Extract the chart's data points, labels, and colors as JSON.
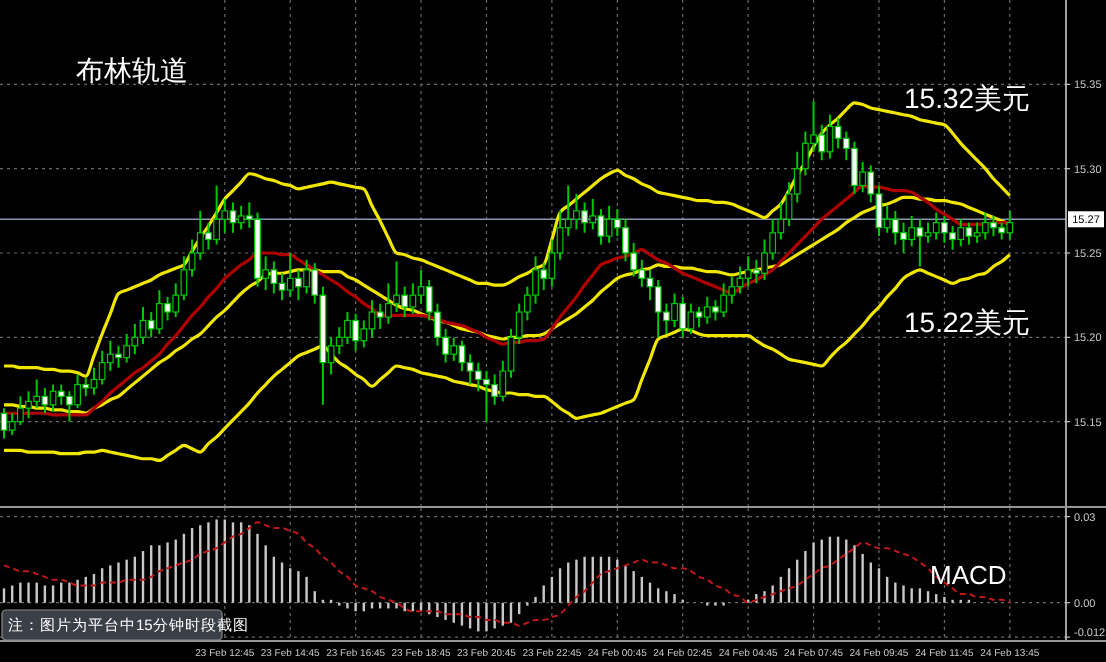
{
  "chart_data": [
    {
      "type": "candlestick",
      "title": "布林轨道",
      "color": "#00c800",
      "categories": [
        null,
        null,
        null,
        null,
        null,
        null,
        null,
        null,
        null,
        null,
        null,
        null,
        null,
        null,
        null,
        null,
        null,
        null,
        null,
        null,
        null,
        null,
        null,
        null,
        null,
        null,
        null,
        null,
        null,
        null,
        null,
        null,
        null,
        null,
        null,
        null,
        null,
        null,
        null,
        null,
        null,
        null,
        null,
        null,
        null,
        null,
        null,
        null,
        null,
        null,
        null,
        null,
        null,
        null,
        null,
        null,
        null,
        null,
        null,
        null,
        null,
        null,
        null,
        null,
        null,
        null,
        null,
        null,
        null,
        null,
        null,
        null,
        null,
        null,
        null,
        null,
        null,
        null,
        null,
        null,
        null,
        null,
        null,
        null,
        null,
        null,
        null,
        null,
        null,
        null,
        null,
        null,
        null,
        null,
        null,
        null,
        null,
        null,
        null,
        null,
        null,
        null,
        null,
        null,
        null,
        null,
        null,
        null,
        null,
        null,
        null,
        null,
        null,
        null,
        null,
        null,
        null,
        null,
        null,
        null,
        null,
        null,
        null,
        null
      ],
      "ohlc": [
        [
          15.155,
          15.158,
          15.14,
          15.145
        ],
        [
          15.145,
          15.155,
          15.142,
          15.15
        ],
        [
          15.15,
          15.165,
          15.148,
          15.158
        ],
        [
          15.158,
          15.168,
          15.152,
          15.162
        ],
        [
          15.162,
          15.175,
          15.158,
          15.165
        ],
        [
          15.165,
          15.17,
          15.155,
          15.16
        ],
        [
          15.16,
          15.172,
          15.156,
          15.168
        ],
        [
          15.168,
          15.172,
          15.16,
          15.165
        ],
        [
          15.165,
          15.168,
          15.15,
          15.16
        ],
        [
          15.16,
          15.178,
          15.158,
          15.172
        ],
        [
          15.172,
          15.176,
          15.165,
          15.17
        ],
        [
          15.17,
          15.182,
          15.166,
          15.175
        ],
        [
          15.175,
          15.192,
          15.172,
          15.185
        ],
        [
          15.185,
          15.198,
          15.18,
          15.19
        ],
        [
          15.19,
          15.195,
          15.182,
          15.188
        ],
        [
          15.188,
          15.202,
          15.185,
          15.195
        ],
        [
          15.195,
          15.208,
          15.19,
          15.2
        ],
        [
          15.2,
          15.218,
          15.196,
          15.21
        ],
        [
          15.21,
          15.215,
          15.2,
          15.205
        ],
        [
          15.205,
          15.228,
          15.202,
          15.22
        ],
        [
          15.22,
          15.224,
          15.21,
          15.215
        ],
        [
          15.215,
          15.232,
          15.212,
          15.225
        ],
        [
          15.225,
          15.248,
          15.222,
          15.24
        ],
        [
          15.24,
          15.258,
          15.236,
          15.25
        ],
        [
          15.25,
          15.275,
          15.246,
          15.262
        ],
        [
          15.262,
          15.268,
          15.252,
          15.258
        ],
        [
          15.258,
          15.29,
          15.255,
          15.27
        ],
        [
          15.27,
          15.282,
          15.262,
          15.275
        ],
        [
          15.275,
          15.28,
          15.262,
          15.268
        ],
        [
          15.268,
          15.278,
          15.264,
          15.272
        ],
        [
          15.272,
          15.28,
          15.265,
          15.27
        ],
        [
          15.27,
          15.274,
          15.23,
          15.235
        ],
        [
          15.235,
          15.248,
          15.228,
          15.24
        ],
        [
          15.24,
          15.245,
          15.226,
          15.232
        ],
        [
          15.232,
          15.238,
          15.222,
          15.228
        ],
        [
          15.228,
          15.25,
          15.224,
          15.235
        ],
        [
          15.235,
          15.24,
          15.222,
          15.23
        ],
        [
          15.23,
          15.246,
          15.226,
          15.24
        ],
        [
          15.24,
          15.244,
          15.22,
          15.225
        ],
        [
          15.225,
          15.23,
          15.16,
          15.185
        ],
        [
          15.185,
          15.2,
          15.178,
          15.195
        ],
        [
          15.195,
          15.206,
          15.19,
          15.2
        ],
        [
          15.2,
          15.215,
          15.196,
          15.21
        ],
        [
          15.21,
          15.214,
          15.192,
          15.198
        ],
        [
          15.198,
          15.21,
          15.194,
          15.205
        ],
        [
          15.205,
          15.222,
          15.2,
          15.215
        ],
        [
          15.215,
          15.22,
          15.205,
          15.212
        ],
        [
          15.212,
          15.232,
          15.208,
          15.22
        ],
        [
          15.22,
          15.245,
          15.215,
          15.225
        ],
        [
          15.225,
          15.23,
          15.212,
          15.218
        ],
        [
          15.218,
          15.232,
          15.214,
          15.225
        ],
        [
          15.225,
          15.24,
          15.22,
          15.23
        ],
        [
          15.23,
          15.234,
          15.21,
          15.215
        ],
        [
          15.215,
          15.22,
          15.195,
          15.2
        ],
        [
          15.2,
          15.205,
          15.185,
          15.19
        ],
        [
          15.19,
          15.2,
          15.186,
          15.195
        ],
        [
          15.195,
          15.198,
          15.18,
          15.185
        ],
        [
          15.185,
          15.19,
          15.172,
          15.18
        ],
        [
          15.18,
          15.185,
          15.168,
          15.175
        ],
        [
          15.175,
          15.18,
          15.15,
          15.172
        ],
        [
          15.172,
          15.178,
          15.16,
          15.165
        ],
        [
          15.165,
          15.186,
          15.162,
          15.18
        ],
        [
          15.18,
          15.205,
          15.176,
          15.2
        ],
        [
          15.2,
          15.22,
          15.196,
          15.215
        ],
        [
          15.215,
          15.23,
          15.21,
          15.225
        ],
        [
          15.225,
          15.248,
          15.22,
          15.24
        ],
        [
          15.24,
          15.244,
          15.228,
          15.235
        ],
        [
          15.235,
          15.258,
          15.23,
          15.25
        ],
        [
          15.25,
          15.275,
          15.246,
          15.265
        ],
        [
          15.265,
          15.29,
          15.26,
          15.27
        ],
        [
          15.27,
          15.285,
          15.264,
          15.275
        ],
        [
          15.275,
          15.28,
          15.262,
          15.268
        ],
        [
          15.268,
          15.282,
          15.264,
          15.272
        ],
        [
          15.272,
          15.276,
          15.255,
          15.26
        ],
        [
          15.26,
          15.278,
          15.256,
          15.27
        ],
        [
          15.27,
          15.276,
          15.26,
          15.265
        ],
        [
          15.265,
          15.27,
          15.245,
          15.25
        ],
        [
          15.25,
          15.256,
          15.236,
          15.24
        ],
        [
          15.24,
          15.246,
          15.23,
          15.235
        ],
        [
          15.235,
          15.24,
          15.222,
          15.23
        ],
        [
          15.23,
          15.234,
          15.2,
          15.215
        ],
        [
          15.215,
          15.22,
          15.202,
          15.21
        ],
        [
          15.21,
          15.226,
          15.206,
          15.22
        ],
        [
          15.22,
          15.224,
          15.2,
          15.205
        ],
        [
          15.205,
          15.22,
          15.202,
          15.215
        ],
        [
          15.215,
          15.218,
          15.206,
          15.212
        ],
        [
          15.212,
          15.224,
          15.208,
          15.218
        ],
        [
          15.218,
          15.222,
          15.21,
          15.215
        ],
        [
          15.215,
          15.232,
          15.212,
          15.225
        ],
        [
          15.225,
          15.236,
          15.22,
          15.23
        ],
        [
          15.23,
          15.242,
          15.226,
          15.235
        ],
        [
          15.235,
          15.248,
          15.23,
          15.24
        ],
        [
          15.24,
          15.246,
          15.232,
          15.238
        ],
        [
          15.238,
          15.258,
          15.234,
          15.25
        ],
        [
          15.25,
          15.27,
          15.246,
          15.262
        ],
        [
          15.262,
          15.28,
          15.258,
          15.27
        ],
        [
          15.27,
          15.292,
          15.266,
          15.285
        ],
        [
          15.285,
          15.31,
          15.28,
          15.3
        ],
        [
          15.3,
          15.322,
          15.296,
          15.315
        ],
        [
          15.315,
          15.34,
          15.31,
          15.32
        ],
        [
          15.32,
          15.326,
          15.305,
          15.31
        ],
        [
          15.31,
          15.332,
          15.306,
          15.325
        ],
        [
          15.325,
          15.33,
          15.312,
          15.318
        ],
        [
          15.318,
          15.322,
          15.305,
          15.312
        ],
        [
          15.312,
          15.316,
          15.285,
          15.29
        ],
        [
          15.29,
          15.304,
          15.286,
          15.298
        ],
        [
          15.298,
          15.302,
          15.28,
          15.285
        ],
        [
          15.285,
          15.29,
          15.26,
          15.265
        ],
        [
          15.265,
          15.278,
          15.262,
          15.27
        ],
        [
          15.27,
          15.275,
          15.255,
          15.262
        ],
        [
          15.262,
          15.268,
          15.25,
          15.258
        ],
        [
          15.258,
          15.272,
          15.254,
          15.265
        ],
        [
          15.265,
          15.27,
          15.242,
          15.26
        ],
        [
          15.26,
          15.268,
          15.256,
          15.262
        ],
        [
          15.262,
          15.274,
          15.258,
          15.268
        ],
        [
          15.268,
          15.272,
          15.256,
          15.262
        ],
        [
          15.262,
          15.266,
          15.252,
          15.258
        ],
        [
          15.258,
          15.27,
          15.254,
          15.265
        ],
        [
          15.265,
          15.268,
          15.255,
          15.26
        ],
        [
          15.26,
          15.268,
          15.256,
          15.262
        ],
        [
          15.262,
          15.274,
          15.258,
          15.268
        ],
        [
          15.268,
          15.272,
          15.26,
          15.265
        ],
        [
          15.265,
          15.268,
          15.258,
          15.262
        ],
        [
          15.262,
          15.275,
          15.258,
          15.268
        ]
      ],
      "series": [
        {
          "type": "line",
          "color": "#f0e600",
          "values": [
            15.183,
            15.183,
            15.182,
            15.182,
            15.182,
            15.181,
            15.181,
            15.18,
            15.18,
            15.179,
            15.177,
            15.189,
            15.202,
            15.214,
            15.226,
            15.228,
            15.23,
            15.232,
            15.234,
            15.237,
            15.239,
            15.241,
            15.243,
            15.251,
            15.259,
            15.266,
            15.274,
            15.282,
            15.287,
            15.292,
            15.297,
            15.296,
            15.294,
            15.293,
            15.291,
            15.29,
            15.288,
            15.289,
            15.29,
            15.291,
            15.292,
            15.291,
            15.29,
            15.289,
            15.288,
            15.278,
            15.269,
            15.259,
            15.25,
            15.249,
            15.247,
            15.246,
            15.244,
            15.242,
            15.24,
            15.238,
            15.236,
            15.234,
            15.232,
            15.232,
            15.231,
            15.231,
            15.233,
            15.236,
            15.238,
            15.241,
            15.243,
            15.258,
            15.274,
            15.278,
            15.282,
            15.286,
            15.29,
            15.294,
            15.297,
            15.299,
            15.296,
            15.294,
            15.291,
            15.289,
            15.286,
            15.285,
            15.284,
            15.283,
            15.282,
            15.281,
            15.281,
            15.28,
            15.28,
            15.279,
            15.277,
            15.275,
            15.273,
            15.271,
            15.275,
            15.279,
            15.287,
            15.296,
            15.304,
            15.313,
            15.321,
            15.326,
            15.33,
            15.335,
            15.339,
            15.338,
            15.336,
            15.335,
            15.334,
            15.333,
            15.332,
            15.331,
            15.329,
            15.328,
            15.327,
            15.326,
            15.321,
            15.315,
            15.31,
            15.305,
            15.3,
            15.294,
            15.289,
            15.284
          ]
        },
        {
          "type": "line",
          "color": "#f0e600",
          "values": [
            15.16,
            15.16,
            15.159,
            15.159,
            15.158,
            15.158,
            15.157,
            15.157,
            15.156,
            15.156,
            15.155,
            15.158,
            15.16,
            15.163,
            15.165,
            15.169,
            15.173,
            15.177,
            15.181,
            15.185,
            15.188,
            15.192,
            15.195,
            15.199,
            15.202,
            15.207,
            15.212,
            15.216,
            15.221,
            15.226,
            15.23,
            15.233,
            15.237,
            15.238,
            15.238,
            15.239,
            15.24,
            15.24,
            15.24,
            15.239,
            15.239,
            15.239,
            15.236,
            15.234,
            15.231,
            15.228,
            15.225,
            15.222,
            15.219,
            15.217,
            15.216,
            15.214,
            15.212,
            15.21,
            15.209,
            15.207,
            15.205,
            15.204,
            15.203,
            15.201,
            15.2,
            15.199,
            15.2,
            15.2,
            15.201,
            15.201,
            15.202,
            15.205,
            15.208,
            15.211,
            15.214,
            15.218,
            15.222,
            15.227,
            15.231,
            15.235,
            15.237,
            15.238,
            15.24,
            15.241,
            15.243,
            15.242,
            15.242,
            15.241,
            15.241,
            15.24,
            15.239,
            15.239,
            15.238,
            15.237,
            15.238,
            15.239,
            15.24,
            15.241,
            15.242,
            15.243,
            15.246,
            15.249,
            15.252,
            15.255,
            15.258,
            15.261,
            15.264,
            15.268,
            15.271,
            15.274,
            15.276,
            15.278,
            15.279,
            15.281,
            15.283,
            15.283,
            15.282,
            15.282,
            15.281,
            15.281,
            15.28,
            15.279,
            15.277,
            15.275,
            15.273,
            15.271,
            15.269,
            15.267
          ]
        },
        {
          "type": "line",
          "color": "#f0e600",
          "values": [
            15.133,
            15.133,
            15.133,
            15.132,
            15.132,
            15.132,
            15.132,
            15.131,
            15.131,
            15.131,
            15.132,
            15.132,
            15.133,
            15.132,
            15.131,
            15.13,
            15.129,
            15.128,
            15.128,
            15.127,
            15.13,
            15.133,
            15.136,
            15.134,
            15.132,
            15.137,
            15.141,
            15.146,
            15.151,
            15.156,
            15.161,
            15.167,
            15.172,
            15.177,
            15.181,
            15.185,
            15.189,
            15.191,
            15.193,
            15.195,
            15.19,
            15.185,
            15.182,
            15.178,
            15.175,
            15.171,
            15.175,
            15.179,
            15.183,
            15.182,
            15.181,
            15.179,
            15.178,
            15.177,
            15.176,
            15.174,
            15.173,
            15.172,
            15.171,
            15.169,
            15.168,
            15.167,
            15.167,
            15.166,
            15.166,
            15.165,
            15.165,
            15.162,
            15.158,
            15.155,
            15.152,
            15.153,
            15.154,
            15.155,
            15.157,
            15.159,
            15.161,
            15.163,
            15.175,
            15.187,
            15.199,
            15.201,
            15.203,
            15.205,
            15.204,
            15.202,
            15.201,
            15.201,
            15.201,
            15.201,
            15.201,
            15.201,
            15.198,
            15.195,
            15.193,
            15.19,
            15.187,
            15.186,
            15.185,
            15.184,
            15.183,
            15.188,
            15.193,
            15.197,
            15.202,
            15.207,
            15.213,
            15.218,
            15.224,
            15.229,
            15.235,
            15.238,
            15.24,
            15.238,
            15.236,
            15.234,
            15.232,
            15.234,
            15.235,
            15.237,
            15.238,
            15.242,
            15.245,
            15.249
          ]
        },
        {
          "type": "line",
          "color": "#b00000",
          "values": [
            15.155,
            15.155,
            15.155,
            15.155,
            15.155,
            15.155,
            15.154,
            15.154,
            15.154,
            15.154,
            15.154,
            15.158,
            15.162,
            15.167,
            15.171,
            15.175,
            15.179,
            15.182,
            15.186,
            15.19,
            15.196,
            15.201,
            15.207,
            15.213,
            15.218,
            15.224,
            15.229,
            15.235,
            15.239,
            15.243,
            15.246,
            15.25,
            15.25,
            15.25,
            15.249,
            15.249,
            15.246,
            15.243,
            15.24,
            15.237,
            15.234,
            15.231,
            15.227,
            15.224,
            15.22,
            15.217,
            15.213,
            15.213,
            15.213,
            15.213,
            15.213,
            15.213,
            15.212,
            15.211,
            15.209,
            15.208,
            15.207,
            15.205,
            15.203,
            15.2,
            15.198,
            15.196,
            15.197,
            15.197,
            15.198,
            15.198,
            15.199,
            15.205,
            15.212,
            15.218,
            15.224,
            15.231,
            15.237,
            15.243,
            15.245,
            15.247,
            15.248,
            15.25,
            15.252,
            15.249,
            15.246,
            15.244,
            15.241,
            15.238,
            15.236,
            15.234,
            15.232,
            15.23,
            15.228,
            15.226,
            15.229,
            15.232,
            15.234,
            15.237,
            15.24,
            15.245,
            15.25,
            15.255,
            15.26,
            15.265,
            15.27,
            15.274,
            15.278,
            15.282,
            15.286,
            15.29,
            15.289,
            15.289,
            15.288,
            15.287,
            15.287,
            15.286,
            15.283,
            15.28,
            15.276,
            15.273,
            15.27,
            15.267,
            15.267,
            15.267,
            15.267,
            15.268,
            15.268,
            15.268
          ]
        }
      ],
      "ylim": [
        15.1,
        15.4
      ],
      "yticks": [
        15.15,
        {
          "value": 15.2,
          "label": "15.20"
        },
        15.25,
        {
          "value": 15.3,
          "label": "15.30"
        },
        15.35
      ],
      "tick_labels": "y",
      "grid": true,
      "ref_lines": [
        {
          "axis": "y",
          "value": 15.27,
          "label": "15.27",
          "color": "#8898b0"
        }
      ],
      "annotations": [
        "15.32美元",
        "15.22美元"
      ]
    },
    {
      "type": "bar",
      "categories": [
        null,
        null,
        null,
        null,
        null,
        null,
        null,
        null,
        null,
        null,
        null,
        null,
        null,
        null,
        null,
        null,
        null,
        null,
        null,
        null,
        null,
        null,
        null,
        null,
        null,
        null,
        null,
        "23 Feb 12:45",
        null,
        null,
        null,
        null,
        null,
        null,
        null,
        "23 Feb 14:45",
        null,
        null,
        null,
        null,
        null,
        null,
        null,
        "23 Feb 16:45",
        null,
        null,
        null,
        null,
        null,
        null,
        null,
        "23 Feb 18:45",
        null,
        null,
        null,
        null,
        null,
        null,
        null,
        "23 Feb 20:45",
        null,
        null,
        null,
        null,
        null,
        null,
        null,
        "23 Feb 22:45",
        null,
        null,
        null,
        null,
        null,
        null,
        null,
        "24 Feb 00:45",
        null,
        null,
        null,
        null,
        null,
        null,
        null,
        "24 Feb 02:45",
        null,
        null,
        null,
        null,
        null,
        null,
        null,
        "24 Feb 04:45",
        null,
        null,
        null,
        null,
        null,
        null,
        null,
        "24 Feb 07:45",
        null,
        null,
        null,
        null,
        null,
        null,
        null,
        "24 Feb 09:45",
        null,
        null,
        null,
        null,
        null,
        null,
        null,
        "24 Feb 11:45",
        null,
        null,
        null,
        null,
        null,
        null,
        null,
        "24 Feb 13:45"
      ],
      "series": [
        {
          "color": "#c8c8c8",
          "values": [
            0.005,
            0.006,
            0.007,
            0.007,
            0.007,
            0.006,
            0.006,
            0.007,
            0.007,
            0.008,
            0.009,
            0.01,
            0.012,
            0.013,
            0.014,
            0.015,
            0.016,
            0.018,
            0.02,
            0.02,
            0.021,
            0.022,
            0.024,
            0.026,
            0.027,
            0.028,
            0.029,
            0.029,
            0.028,
            0.028,
            0.027,
            0.024,
            0.02,
            0.016,
            0.014,
            0.012,
            0.011,
            0.009,
            0.004,
            0.001,
            0.001,
            -0.001,
            -0.002,
            -0.003,
            -0.003,
            -0.002,
            -0.002,
            -0.002,
            -0.002,
            -0.003,
            -0.003,
            -0.003,
            -0.004,
            -0.005,
            -0.006,
            -0.007,
            -0.008,
            -0.009,
            -0.01,
            -0.01,
            -0.009,
            -0.008,
            -0.007,
            -0.004,
            -0.001,
            0.002,
            0.006,
            0.009,
            0.012,
            0.014,
            0.015,
            0.016,
            0.016,
            0.016,
            0.016,
            0.015,
            0.013,
            0.011,
            0.009,
            0.007,
            0.005,
            0.004,
            0.003,
            0.001,
            0.0,
            0.0,
            -0.001,
            -0.001,
            -0.001,
            0.0,
            0.0,
            0.001,
            0.003,
            0.004,
            0.006,
            0.009,
            0.012,
            0.015,
            0.018,
            0.021,
            0.022,
            0.023,
            0.023,
            0.022,
            0.02,
            0.017,
            0.014,
            0.012,
            0.009,
            0.007,
            0.006,
            0.005,
            0.005,
            0.004,
            0.003,
            0.002,
            0.001,
            0.001,
            0.001,
            0.0,
            0.0,
            0.0,
            0.0,
            0.0
          ]
        },
        {
          "type": "line",
          "color": "#c01818",
          "line_style": "dashed",
          "values": [
            0.013,
            0.012,
            0.011,
            0.011,
            0.01,
            0.009,
            0.008,
            0.008,
            0.007,
            0.006,
            0.006,
            0.006,
            0.007,
            0.007,
            0.007,
            0.008,
            0.008,
            0.008,
            0.009,
            0.011,
            0.012,
            0.013,
            0.014,
            0.015,
            0.017,
            0.018,
            0.019,
            0.021,
            0.023,
            0.024,
            0.026,
            0.028,
            0.027,
            0.026,
            0.026,
            0.025,
            0.024,
            0.021,
            0.019,
            0.016,
            0.014,
            0.011,
            0.009,
            0.006,
            0.005,
            0.004,
            0.002,
            0.001,
            0.0,
            -0.002,
            -0.003,
            -0.003,
            -0.003,
            -0.003,
            -0.004,
            -0.004,
            -0.004,
            -0.005,
            -0.005,
            -0.006,
            -0.006,
            -0.007,
            -0.007,
            -0.008,
            -0.007,
            -0.006,
            -0.006,
            -0.005,
            -0.004,
            -0.001,
            0.002,
            0.004,
            0.007,
            0.01,
            0.011,
            0.012,
            0.013,
            0.014,
            0.015,
            0.014,
            0.014,
            0.013,
            0.012,
            0.012,
            0.011,
            0.009,
            0.008,
            0.006,
            0.005,
            0.003,
            0.002,
            0.0,
            0.001,
            0.002,
            0.003,
            0.004,
            0.005,
            0.006,
            0.008,
            0.01,
            0.012,
            0.013,
            0.015,
            0.017,
            0.019,
            0.021,
            0.02,
            0.019,
            0.019,
            0.018,
            0.017,
            0.016,
            0.014,
            0.012,
            0.009,
            0.007,
            0.005,
            0.003,
            0.003,
            0.002,
            0.002,
            0.001,
            0.001,
            0.0
          ]
        }
      ],
      "ylim": [
        -0.013,
        0.033
      ],
      "yticks": [
        0.03,
        {
          "value": 0,
          "label": "0.00"
        },
        -0.012
      ],
      "grid": true,
      "annotations": [
        "MACD",
        "注：图片为平台中15分钟时段截图"
      ]
    }
  ]
}
